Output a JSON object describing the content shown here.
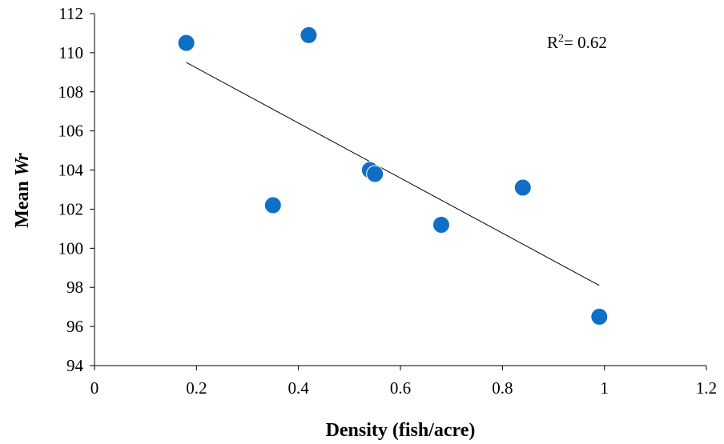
{
  "chart_data": {
    "type": "scatter",
    "title": "",
    "xlabel": "Density (fish/acre)",
    "ylabel_prefix": "Mean ",
    "ylabel_italic": "Wr",
    "xlim": [
      0,
      1.2
    ],
    "ylim": [
      94,
      112
    ],
    "x_ticks": [
      "0",
      "0.2",
      "0.4",
      "0.6",
      "0.8",
      "1",
      "1.2"
    ],
    "y_ticks": [
      "94",
      "96",
      "98",
      "100",
      "102",
      "104",
      "106",
      "108",
      "110",
      "112"
    ],
    "grid": false,
    "legend": "none",
    "marker_color": "#0F6FC6",
    "points": [
      {
        "x": 0.18,
        "y": 110.5
      },
      {
        "x": 0.35,
        "y": 102.2
      },
      {
        "x": 0.42,
        "y": 110.9
      },
      {
        "x": 0.54,
        "y": 104.0
      },
      {
        "x": 0.55,
        "y": 103.8
      },
      {
        "x": 0.68,
        "y": 101.2
      },
      {
        "x": 0.84,
        "y": 103.1
      },
      {
        "x": 0.99,
        "y": 96.5
      }
    ],
    "trendline": {
      "type": "linear",
      "x_start": 0.18,
      "y_start": 109.5,
      "x_end": 0.99,
      "y_end": 98.1,
      "color": "#000000"
    },
    "annotation": {
      "r_text": "R",
      "sup": "2",
      "rest": "= 0.62"
    }
  }
}
